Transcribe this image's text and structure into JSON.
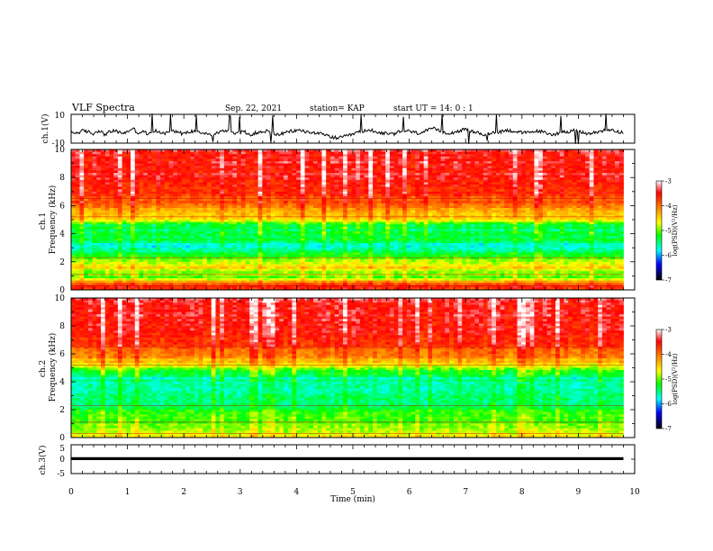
{
  "header": {
    "title": "VLF Spectra",
    "date": "Sep. 22, 2021",
    "station": "station= KAP",
    "start": "start UT =  14: 0 : 1"
  },
  "chart_data": [
    {
      "type": "line",
      "panel": "ch1-waveform",
      "ylabel": "ch.1(V)",
      "ylim": [
        -10,
        10
      ],
      "yticks": [
        "10",
        "-10"
      ],
      "xlim": [
        0,
        10
      ],
      "series": [
        {
          "values": [
            -2.5,
            -3,
            -1.5,
            -2,
            -3.5,
            -1,
            -4,
            -2,
            -1.5,
            -3,
            -2.5,
            0.5,
            -3,
            -2,
            -4,
            -1.5,
            -2.5,
            -3,
            -1,
            -2,
            -3.5,
            -2.5,
            -1.5,
            -2,
            -3,
            -4.5,
            -3,
            -2,
            -1,
            -2.5,
            -3,
            -2,
            -4,
            -3,
            -2.5,
            -1.5,
            -3,
            -4,
            -3.5,
            -2,
            -1.5,
            -1,
            -2,
            -3,
            -2.5,
            -4,
            -5,
            -6,
            -6.5,
            -5.5,
            -4.5,
            -3,
            -2,
            -1.5,
            -1,
            -2.5,
            -3,
            -4,
            -3.5,
            -2,
            -1.5,
            -2,
            -3,
            -2.5,
            -1,
            0,
            -1.5,
            -2.5,
            -3,
            -2,
            -1,
            -0.5,
            -2,
            -3,
            -4,
            -3.5,
            -2.5,
            -2,
            -1,
            -1.5,
            -2,
            -3,
            -2.5,
            -2,
            -1.5,
            -3,
            -4,
            -3.5,
            -2.5,
            -2,
            -1,
            -2,
            -3,
            -3.5,
            -2.5,
            -1.5,
            -1,
            -0.5,
            -2,
            -2.5
          ]
        }
      ]
    },
    {
      "type": "heatmap",
      "panel": "ch1-spectrogram",
      "ylabel": "ch.1\nFrequency (kHz)",
      "ylabel_lines": [
        "ch.1",
        "Frequency (kHz)"
      ],
      "ylim": [
        0,
        10
      ],
      "yticks": [
        "0",
        "2",
        "4",
        "6",
        "8",
        "10"
      ],
      "xlim": [
        0,
        10
      ],
      "data_end_min": 9.8,
      "colorbar": {
        "label": "log(PSD)(V²/Hz)",
        "range": [
          -7,
          -3
        ],
        "ticks": [
          "-3",
          "-4",
          "-5",
          "-6",
          "-7"
        ]
      },
      "profile": [
        {
          "f_khz": 0.0,
          "log_psd": -3.6
        },
        {
          "f_khz": 0.4,
          "log_psd": -3.8
        },
        {
          "f_khz": 0.8,
          "log_psd": -4.9
        },
        {
          "f_khz": 1.2,
          "log_psd": -5.0
        },
        {
          "f_khz": 1.6,
          "log_psd": -4.5
        },
        {
          "f_khz": 2.0,
          "log_psd": -4.8
        },
        {
          "f_khz": 2.4,
          "log_psd": -5.2
        },
        {
          "f_khz": 2.9,
          "log_psd": -5.6
        },
        {
          "f_khz": 3.2,
          "log_psd": -5.8
        },
        {
          "f_khz": 3.6,
          "log_psd": -5.3
        },
        {
          "f_khz": 4.0,
          "log_psd": -5.4
        },
        {
          "f_khz": 4.6,
          "log_psd": -5.3
        },
        {
          "f_khz": 5.0,
          "log_psd": -4.6
        },
        {
          "f_khz": 5.4,
          "log_psd": -4.3
        },
        {
          "f_khz": 6.0,
          "log_psd": -4.0
        },
        {
          "f_khz": 7.0,
          "log_psd": -3.6
        },
        {
          "f_khz": 8.0,
          "log_psd": -3.5
        },
        {
          "f_khz": 10.0,
          "log_psd": -3.4
        }
      ]
    },
    {
      "type": "heatmap",
      "panel": "ch2-spectrogram",
      "ylabel": "ch.2\nFrequency (kHz)",
      "ylabel_lines": [
        "ch.2",
        "Frequency (kHz)"
      ],
      "ylim": [
        0,
        10
      ],
      "yticks": [
        "0",
        "2",
        "4",
        "6",
        "8",
        "10"
      ],
      "xlim": [
        0,
        10
      ],
      "data_end_min": 9.8,
      "colorbar": {
        "label": "log(PSD)(V²/Hz)",
        "range": [
          -7,
          -3
        ],
        "ticks": [
          "-3",
          "-4",
          "-5",
          "-6",
          "-7"
        ]
      },
      "profile": [
        {
          "f_khz": 0.0,
          "log_psd": -4.6
        },
        {
          "f_khz": 0.5,
          "log_psd": -4.9
        },
        {
          "f_khz": 1.0,
          "log_psd": -5.0
        },
        {
          "f_khz": 1.5,
          "log_psd": -5.1
        },
        {
          "f_khz": 2.0,
          "log_psd": -5.2
        },
        {
          "f_khz": 2.5,
          "log_psd": -5.6
        },
        {
          "f_khz": 3.0,
          "log_psd": -5.4
        },
        {
          "f_khz": 3.5,
          "log_psd": -5.6
        },
        {
          "f_khz": 4.2,
          "log_psd": -5.6
        },
        {
          "f_khz": 4.8,
          "log_psd": -5.1
        },
        {
          "f_khz": 5.4,
          "log_psd": -4.4
        },
        {
          "f_khz": 6.0,
          "log_psd": -4.0
        },
        {
          "f_khz": 7.0,
          "log_psd": -3.6
        },
        {
          "f_khz": 8.0,
          "log_psd": -3.5
        },
        {
          "f_khz": 10.0,
          "log_psd": -3.4
        }
      ]
    },
    {
      "type": "line",
      "panel": "ch3-waveform",
      "ylabel": "ch.3(V)",
      "ylim": [
        -5,
        5
      ],
      "yticks": [
        "5",
        "0",
        "-5"
      ],
      "xlim": [
        0,
        10
      ],
      "xlabel": "Time (min)",
      "xticks": [
        "0",
        "1",
        "2",
        "3",
        "4",
        "5",
        "6",
        "7",
        "8",
        "9",
        "10"
      ],
      "series": [
        {
          "values": [
            0.2,
            0.2
          ],
          "band": [
            -0.3,
            0.7
          ]
        }
      ]
    }
  ]
}
